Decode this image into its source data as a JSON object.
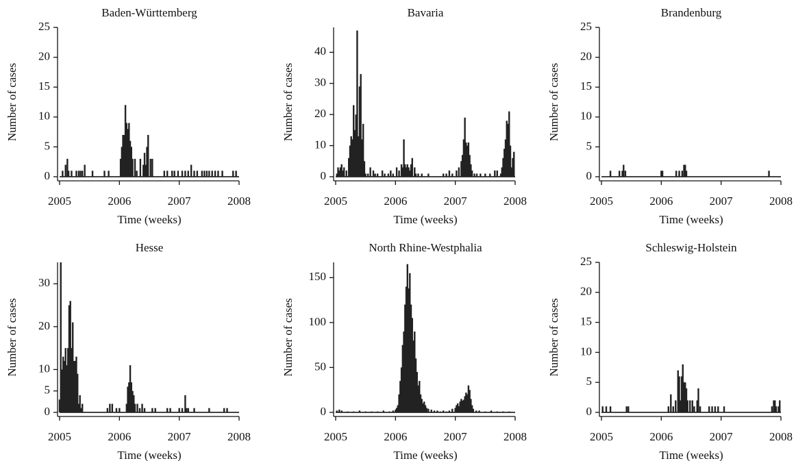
{
  "chart_data": [
    {
      "type": "bar",
      "title": "Baden-Württemberg",
      "xlabel": "Time (weeks)",
      "ylabel": "Number of cases",
      "color": "#222222",
      "x": [
        2005.05,
        2005.1,
        2005.13,
        2005.15,
        2005.2,
        2005.28,
        2005.32,
        2005.35,
        2005.38,
        2005.42,
        2005.55,
        2005.75,
        2005.82,
        2006.02,
        2006.04,
        2006.06,
        2006.08,
        2006.1,
        2006.12,
        2006.14,
        2006.16,
        2006.18,
        2006.2,
        2006.22,
        2006.26,
        2006.29,
        2006.35,
        2006.4,
        2006.42,
        2006.44,
        2006.46,
        2006.48,
        2006.52,
        2006.55,
        2006.75,
        2006.8,
        2006.88,
        2006.92,
        2006.98,
        2007.05,
        2007.1,
        2007.15,
        2007.2,
        2007.25,
        2007.3,
        2007.38,
        2007.42,
        2007.46,
        2007.5,
        2007.55,
        2007.6,
        2007.65,
        2007.72,
        2007.9,
        2007.95
      ],
      "values": [
        1,
        2,
        3,
        1,
        1,
        1,
        1,
        1,
        1,
        2,
        1,
        1,
        1,
        3,
        5,
        7,
        7,
        12,
        9,
        8,
        9,
        6,
        5,
        3,
        3,
        1,
        3,
        2,
        4,
        2,
        5,
        7,
        3,
        3,
        1,
        1,
        1,
        1,
        1,
        1,
        1,
        1,
        2,
        1,
        1,
        1,
        1,
        1,
        1,
        1,
        1,
        1,
        1,
        1,
        1
      ],
      "xlim": [
        2005,
        2008
      ],
      "xticks": [
        2005,
        2006,
        2007,
        2008
      ],
      "ylim": [
        0,
        25
      ],
      "yticks": [
        0,
        5,
        10,
        15,
        20,
        25
      ]
    },
    {
      "type": "bar",
      "title": "Bavaria",
      "xlabel": "Time (weeks)",
      "ylabel": "Number of cases",
      "color": "#222222",
      "x": [
        2005.02,
        2005.04,
        2005.06,
        2005.08,
        2005.1,
        2005.12,
        2005.14,
        2005.18,
        2005.22,
        2005.24,
        2005.26,
        2005.28,
        2005.3,
        2005.32,
        2005.34,
        2005.36,
        2005.38,
        2005.4,
        2005.42,
        2005.44,
        2005.46,
        2005.48,
        2005.5,
        2005.54,
        2005.58,
        2005.63,
        2005.66,
        2005.7,
        2005.78,
        2005.82,
        2005.88,
        2005.92,
        2005.96,
        2006.02,
        2006.06,
        2006.1,
        2006.12,
        2006.14,
        2006.16,
        2006.18,
        2006.2,
        2006.22,
        2006.24,
        2006.26,
        2006.28,
        2006.32,
        2006.34,
        2006.38,
        2006.44,
        2006.55,
        2006.8,
        2006.85,
        2006.9,
        2006.95,
        2007.02,
        2007.06,
        2007.1,
        2007.12,
        2007.14,
        2007.16,
        2007.18,
        2007.2,
        2007.22,
        2007.24,
        2007.26,
        2007.28,
        2007.32,
        2007.36,
        2007.42,
        2007.5,
        2007.58,
        2007.66,
        2007.7,
        2007.76,
        2007.78,
        2007.8,
        2007.82,
        2007.84,
        2007.86,
        2007.88,
        2007.9,
        2007.92,
        2007.94,
        2007.96,
        2007.98
      ],
      "values": [
        1,
        3,
        2,
        3,
        4,
        2,
        3,
        2,
        6,
        10,
        13,
        12,
        23,
        15,
        20,
        47,
        13,
        29,
        33,
        12,
        17,
        5,
        1,
        1,
        3,
        2,
        1,
        1,
        2,
        1,
        1,
        2,
        1,
        3,
        2,
        4,
        3,
        12,
        4,
        3,
        4,
        3,
        2,
        4,
        6,
        3,
        1,
        1,
        1,
        1,
        1,
        1,
        2,
        1,
        2,
        3,
        5,
        7,
        12,
        19,
        11,
        10,
        11,
        7,
        4,
        2,
        1,
        1,
        1,
        1,
        1,
        2,
        2,
        1,
        3,
        6,
        9,
        12,
        18,
        17,
        21,
        10,
        3,
        6,
        8
      ],
      "xlim": [
        2005,
        2008
      ],
      "xticks": [
        2005,
        2006,
        2007,
        2008
      ],
      "ylim": [
        0,
        48
      ],
      "yticks": [
        0,
        10,
        20,
        30,
        40
      ]
    },
    {
      "type": "bar",
      "title": "Brandenburg",
      "xlabel": "Time (weeks)",
      "ylabel": "Number of cases",
      "color": "#222222",
      "x": [
        2005.15,
        2005.3,
        2005.35,
        2005.37,
        2005.4,
        2006.0,
        2006.02,
        2006.25,
        2006.3,
        2006.35,
        2006.38,
        2006.4,
        2006.42,
        2007.8
      ],
      "values": [
        1,
        1,
        1,
        2,
        1,
        1,
        1,
        1,
        1,
        1,
        2,
        2,
        1,
        1
      ],
      "xlim": [
        2005,
        2008
      ],
      "xticks": [
        2005,
        2006,
        2007,
        2008
      ],
      "ylim": [
        0,
        25
      ],
      "yticks": [
        0,
        5,
        10,
        15,
        20,
        25
      ]
    },
    {
      "type": "bar",
      "title": "Hesse",
      "xlabel": "Time (weeks)",
      "ylabel": "Number of cases",
      "color": "#222222",
      "x": [
        2005.0,
        2005.02,
        2005.04,
        2005.06,
        2005.08,
        2005.1,
        2005.12,
        2005.14,
        2005.16,
        2005.18,
        2005.2,
        2005.22,
        2005.24,
        2005.26,
        2005.28,
        2005.3,
        2005.32,
        2005.34,
        2005.36,
        2005.38,
        2005.8,
        2005.84,
        2005.88,
        2005.95,
        2006.0,
        2006.12,
        2006.14,
        2006.16,
        2006.18,
        2006.2,
        2006.22,
        2006.24,
        2006.26,
        2006.3,
        2006.34,
        2006.38,
        2006.42,
        2006.55,
        2006.6,
        2006.8,
        2006.85,
        2007.0,
        2007.05,
        2007.1,
        2007.12,
        2007.15,
        2007.25,
        2007.5,
        2007.75,
        2007.8
      ],
      "values": [
        3,
        35,
        10,
        13,
        12,
        15,
        11,
        15,
        25,
        26,
        15,
        21,
        12,
        12,
        13,
        9,
        2,
        4,
        1,
        2,
        1,
        2,
        2,
        1,
        1,
        2,
        6,
        7,
        11,
        7,
        5,
        4,
        2,
        2,
        1,
        2,
        1,
        1,
        1,
        1,
        1,
        1,
        1,
        4,
        1,
        1,
        1,
        1,
        1,
        1
      ],
      "xlim": [
        2005,
        2008
      ],
      "xticks": [
        2005,
        2006,
        2007,
        2008
      ],
      "ylim": [
        0,
        35
      ],
      "yticks": [
        0,
        5,
        10,
        20,
        30
      ]
    },
    {
      "type": "bar",
      "title": "North Rhine-Westphalia",
      "xlabel": "Time (weeks)",
      "ylabel": "Number of cases",
      "color": "#222222",
      "x": [
        2005.02,
        2005.06,
        2005.1,
        2005.2,
        2005.3,
        2005.4,
        2005.5,
        2005.6,
        2005.7,
        2005.8,
        2005.9,
        2005.96,
        2006.0,
        2006.02,
        2006.04,
        2006.06,
        2006.08,
        2006.1,
        2006.12,
        2006.14,
        2006.16,
        2006.18,
        2006.2,
        2006.22,
        2006.24,
        2006.26,
        2006.28,
        2006.3,
        2006.32,
        2006.34,
        2006.36,
        2006.38,
        2006.4,
        2006.42,
        2006.44,
        2006.46,
        2006.48,
        2006.5,
        2006.52,
        2006.55,
        2006.6,
        2006.65,
        2006.7,
        2006.75,
        2006.8,
        2006.85,
        2006.9,
        2006.95,
        2007.0,
        2007.02,
        2007.04,
        2007.06,
        2007.08,
        2007.1,
        2007.12,
        2007.14,
        2007.16,
        2007.18,
        2007.2,
        2007.22,
        2007.24,
        2007.26,
        2007.28,
        2007.3,
        2007.35,
        2007.4,
        2007.5,
        2007.6,
        2007.7,
        2007.8,
        2007.9
      ],
      "values": [
        2,
        3,
        2,
        1,
        1,
        2,
        1,
        1,
        1,
        2,
        1,
        2,
        3,
        5,
        8,
        20,
        35,
        50,
        75,
        90,
        120,
        140,
        165,
        138,
        155,
        120,
        105,
        80,
        90,
        60,
        45,
        30,
        35,
        20,
        15,
        10,
        12,
        8,
        5,
        4,
        3,
        2,
        2,
        1,
        2,
        1,
        2,
        4,
        5,
        8,
        10,
        7,
        12,
        15,
        13,
        14,
        18,
        22,
        20,
        30,
        25,
        15,
        8,
        4,
        2,
        2,
        1,
        2,
        1,
        1,
        1
      ],
      "xlim": [
        2005,
        2008
      ],
      "xticks": [
        2005,
        2006,
        2007,
        2008
      ],
      "ylim": [
        0,
        167
      ],
      "yticks": [
        0,
        50,
        100,
        150
      ]
    },
    {
      "type": "bar",
      "title": "Schleswig-Holstein",
      "xlabel": "Time (weeks)",
      "ylabel": "Number of cases",
      "color": "#222222",
      "x": [
        2005.02,
        2005.08,
        2005.15,
        2005.42,
        2005.45,
        2006.12,
        2006.16,
        2006.2,
        2006.24,
        2006.28,
        2006.3,
        2006.32,
        2006.34,
        2006.36,
        2006.38,
        2006.4,
        2006.42,
        2006.44,
        2006.48,
        2006.52,
        2006.55,
        2006.6,
        2006.62,
        2006.65,
        2006.8,
        2006.85,
        2006.9,
        2006.95,
        2007.05,
        2007.85,
        2007.88,
        2007.9,
        2007.92,
        2007.96,
        2007.98
      ],
      "values": [
        1,
        1,
        1,
        1,
        1,
        1,
        3,
        1,
        2,
        7,
        6,
        2,
        6,
        8,
        5,
        5,
        4,
        2,
        2,
        2,
        1,
        2,
        4,
        1,
        1,
        1,
        1,
        1,
        1,
        1,
        2,
        2,
        1,
        1,
        2
      ],
      "xlim": [
        2005,
        2008
      ],
      "xticks": [
        2005,
        2006,
        2007,
        2008
      ],
      "ylim": [
        0,
        25
      ],
      "yticks": [
        0,
        5,
        10,
        15,
        20,
        25
      ]
    }
  ]
}
